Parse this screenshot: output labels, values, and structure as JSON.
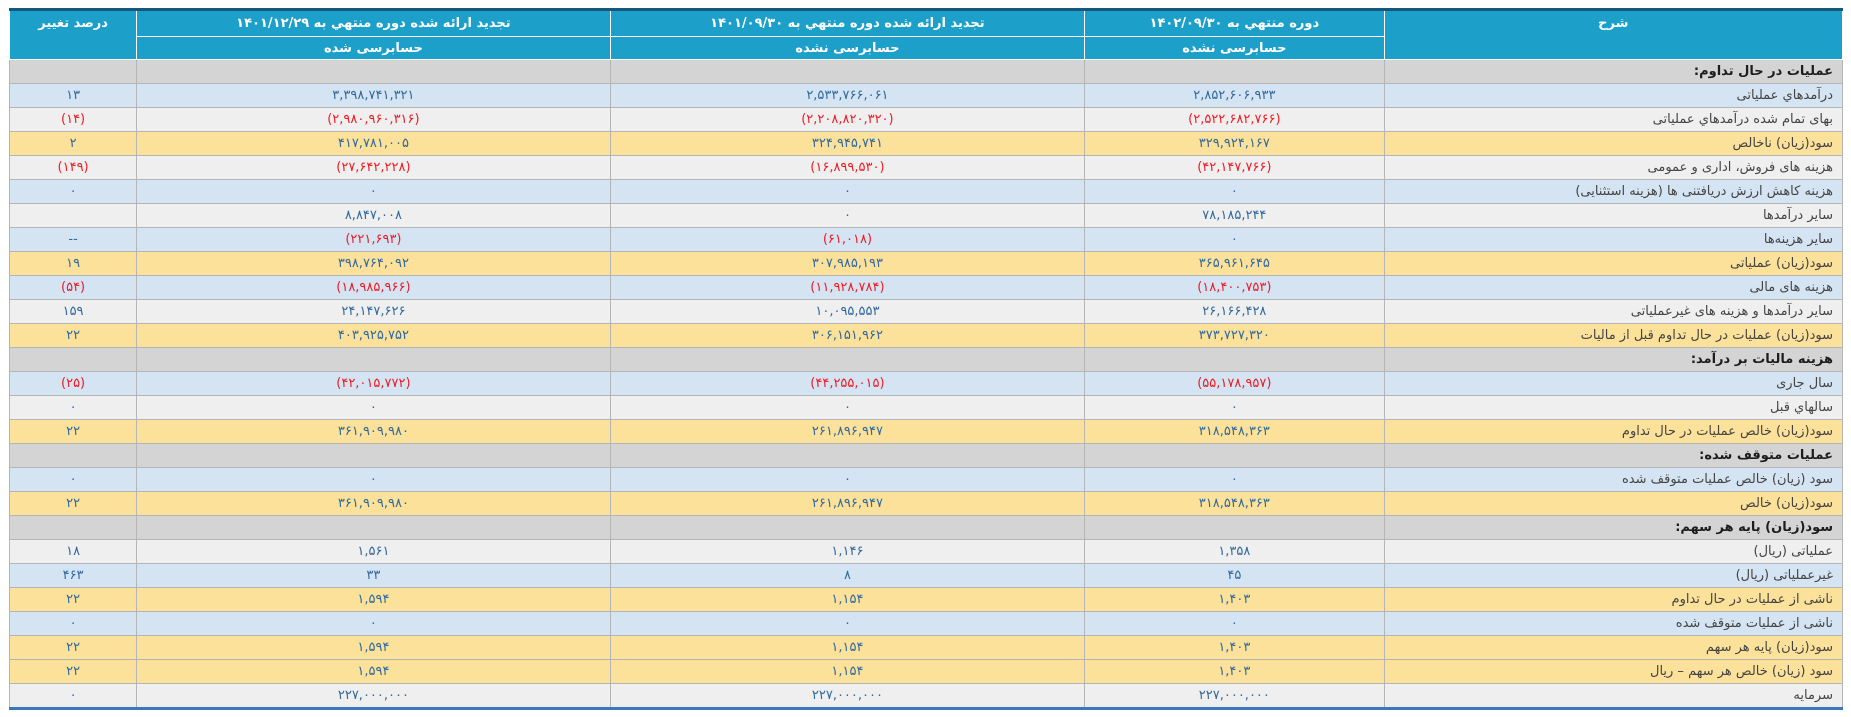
{
  "colors": {
    "header_bg": "#1CA0C9",
    "top_border": "#15587A",
    "bottom_border": "#3B77BD",
    "section_row_bg": "#D4D4D4",
    "row_blue_bg": "#D5E4F3",
    "row_gray_bg": "#EFEFEF",
    "row_highlight_yellow_bg": "#FBE199",
    "value_text": "#31699E",
    "negative_value_text": "#EE1C25"
  },
  "table": {
    "headers": {
      "col_desc": "شرح",
      "col_p1402": "دوره منتهي به ۱۴۰۲/۰۹/۳۰",
      "col_p1401_09": "تجدید ارائه شده دوره منتهي به ۱۴۰۱/۰۹/۳۰",
      "col_p1401_12": "تجدید ارائه شده دوره منتهي به ۱۴۰۱/۱۲/۲۹",
      "col_pct": "درصد تغییر",
      "sub_unaudited": "حسابرسی نشده",
      "sub_audited": "حسابرسی شده"
    },
    "rows": [
      {
        "type": "section",
        "tone": "section",
        "desc": "عملیات در حال تداوم:",
        "v1402": "",
        "v1401_09": "",
        "v1401_12": "",
        "pct": ""
      },
      {
        "type": "data",
        "tone": "blue",
        "desc": "درآمدهاي عملیاتی",
        "v1402": "۲,۸۵۲,۶۰۶,۹۳۳",
        "v1401_09": "۲,۵۳۳,۷۶۶,۰۶۱",
        "v1401_12": "۳,۳۹۸,۷۴۱,۳۲۱",
        "pct": "۱۳"
      },
      {
        "type": "data",
        "tone": "gray",
        "desc": "بهای تمام شده درآمدهاي عملیاتی",
        "v1402": "(۲,۵۲۲,۶۸۲,۷۶۶)",
        "v1401_09": "(۲,۲۰۸,۸۲۰,۳۲۰)",
        "v1401_12": "(۲,۹۸۰,۹۶۰,۳۱۶)",
        "pct": "(۱۴)"
      },
      {
        "type": "data",
        "tone": "yellow",
        "desc": "سود(زیان) ناخالص",
        "v1402": "۳۲۹,۹۲۴,۱۶۷",
        "v1401_09": "۳۲۴,۹۴۵,۷۴۱",
        "v1401_12": "۴۱۷,۷۸۱,۰۰۵",
        "pct": "۲"
      },
      {
        "type": "data",
        "tone": "gray",
        "desc": "هزینه های فروش، اداری و عمومی",
        "v1402": "(۴۲,۱۴۷,۷۶۶)",
        "v1401_09": "(۱۶,۸۹۹,۵۳۰)",
        "v1401_12": "(۲۷,۶۴۲,۲۲۸)",
        "pct": "(۱۴۹)"
      },
      {
        "type": "data",
        "tone": "blue",
        "desc": "هزینه کاهش ارزش دریافتنی ها (هزینه استثنایی)",
        "v1402": "۰",
        "v1401_09": "۰",
        "v1401_12": "۰",
        "pct": "۰"
      },
      {
        "type": "data",
        "tone": "gray",
        "desc": "سایر درآمدها",
        "v1402": "۷۸,۱۸۵,۲۴۴",
        "v1401_09": "۰",
        "v1401_12": "۸,۸۴۷,۰۰۸",
        "pct": ""
      },
      {
        "type": "data",
        "tone": "blue",
        "desc": "سایر هزینه‌ها",
        "v1402": "۰",
        "v1401_09": "(۶۱,۰۱۸)",
        "v1401_12": "(۲۲۱,۶۹۳)",
        "pct": "--"
      },
      {
        "type": "data",
        "tone": "yellow",
        "desc": "سود(زیان) عملیاتی",
        "v1402": "۳۶۵,۹۶۱,۶۴۵",
        "v1401_09": "۳۰۷,۹۸۵,۱۹۳",
        "v1401_12": "۳۹۸,۷۶۴,۰۹۲",
        "pct": "۱۹"
      },
      {
        "type": "data",
        "tone": "blue",
        "desc": "هزینه های مالی",
        "v1402": "(۱۸,۴۰۰,۷۵۳)",
        "v1401_09": "(۱۱,۹۲۸,۷۸۴)",
        "v1401_12": "(۱۸,۹۸۵,۹۶۶)",
        "pct": "(۵۴)"
      },
      {
        "type": "data",
        "tone": "gray",
        "desc": "سایر درآمدها و هزینه های غیرعملیاتی",
        "v1402": "۲۶,۱۶۶,۴۲۸",
        "v1401_09": "۱۰,۰۹۵,۵۵۳",
        "v1401_12": "۲۴,۱۴۷,۶۲۶",
        "pct": "۱۵۹"
      },
      {
        "type": "data",
        "tone": "yellow",
        "desc": "سود(زیان) عملیات در حال تداوم قبل از مالیات",
        "v1402": "۳۷۳,۷۲۷,۳۲۰",
        "v1401_09": "۳۰۶,۱۵۱,۹۶۲",
        "v1401_12": "۴۰۳,۹۲۵,۷۵۲",
        "pct": "۲۲"
      },
      {
        "type": "section",
        "tone": "section",
        "desc": "هزینه مالیات بر درآمد:",
        "v1402": "",
        "v1401_09": "",
        "v1401_12": "",
        "pct": ""
      },
      {
        "type": "data",
        "tone": "blue",
        "desc": "سال جاری",
        "v1402": "(۵۵,۱۷۸,۹۵۷)",
        "v1401_09": "(۴۴,۲۵۵,۰۱۵)",
        "v1401_12": "(۴۲,۰۱۵,۷۷۲)",
        "pct": "(۲۵)"
      },
      {
        "type": "data",
        "tone": "gray",
        "desc": "سالهاي قبل",
        "v1402": "۰",
        "v1401_09": "۰",
        "v1401_12": "۰",
        "pct": "۰"
      },
      {
        "type": "data",
        "tone": "yellow",
        "desc": "سود(زیان) خالص عملیات در حال تداوم",
        "v1402": "۳۱۸,۵۴۸,۳۶۳",
        "v1401_09": "۲۶۱,۸۹۶,۹۴۷",
        "v1401_12": "۳۶۱,۹۰۹,۹۸۰",
        "pct": "۲۲"
      },
      {
        "type": "section",
        "tone": "section",
        "desc": "عملیات متوقف شده:",
        "v1402": "",
        "v1401_09": "",
        "v1401_12": "",
        "pct": ""
      },
      {
        "type": "data",
        "tone": "blue",
        "desc": "سود (زیان) خالص عملیات متوقف شده",
        "v1402": "۰",
        "v1401_09": "۰",
        "v1401_12": "۰",
        "pct": "۰"
      },
      {
        "type": "data",
        "tone": "yellow",
        "desc": "سود(زیان) خالص",
        "v1402": "۳۱۸,۵۴۸,۳۶۳",
        "v1401_09": "۲۶۱,۸۹۶,۹۴۷",
        "v1401_12": "۳۶۱,۹۰۹,۹۸۰",
        "pct": "۲۲"
      },
      {
        "type": "section",
        "tone": "section",
        "desc": "سود(زیان) پایه هر سهم:",
        "v1402": "",
        "v1401_09": "",
        "v1401_12": "",
        "pct": ""
      },
      {
        "type": "data",
        "tone": "gray",
        "desc": "عملیاتی (ریال)",
        "v1402": "۱,۳۵۸",
        "v1401_09": "۱,۱۴۶",
        "v1401_12": "۱,۵۶۱",
        "pct": "۱۸"
      },
      {
        "type": "data",
        "tone": "blue",
        "desc": "غیرعملیاتی (ریال)",
        "v1402": "۴۵",
        "v1401_09": "۸",
        "v1401_12": "۳۳",
        "pct": "۴۶۳"
      },
      {
        "type": "data",
        "tone": "yellow",
        "desc": "ناشی از عملیات در حال تداوم",
        "v1402": "۱,۴۰۳",
        "v1401_09": "۱,۱۵۴",
        "v1401_12": "۱,۵۹۴",
        "pct": "۲۲"
      },
      {
        "type": "data",
        "tone": "blue",
        "desc": "ناشی از عملیات متوقف شده",
        "v1402": "۰",
        "v1401_09": "۰",
        "v1401_12": "۰",
        "pct": "۰"
      },
      {
        "type": "data",
        "tone": "yellow",
        "desc": "سود(زیان) پایه هر سهم",
        "v1402": "۱,۴۰۳",
        "v1401_09": "۱,۱۵۴",
        "v1401_12": "۱,۵۹۴",
        "pct": "۲۲"
      },
      {
        "type": "data",
        "tone": "yellow",
        "desc": "سود (زیان) خالص هر سهم – ریال",
        "v1402": "۱,۴۰۳",
        "v1401_09": "۱,۱۵۴",
        "v1401_12": "۱,۵۹۴",
        "pct": "۲۲"
      },
      {
        "type": "data",
        "tone": "gray",
        "desc": "سرمایه",
        "v1402": "۲۲۷,۰۰۰,۰۰۰",
        "v1401_09": "۲۲۷,۰۰۰,۰۰۰",
        "v1401_12": "۲۲۷,۰۰۰,۰۰۰",
        "pct": "۰"
      }
    ]
  }
}
